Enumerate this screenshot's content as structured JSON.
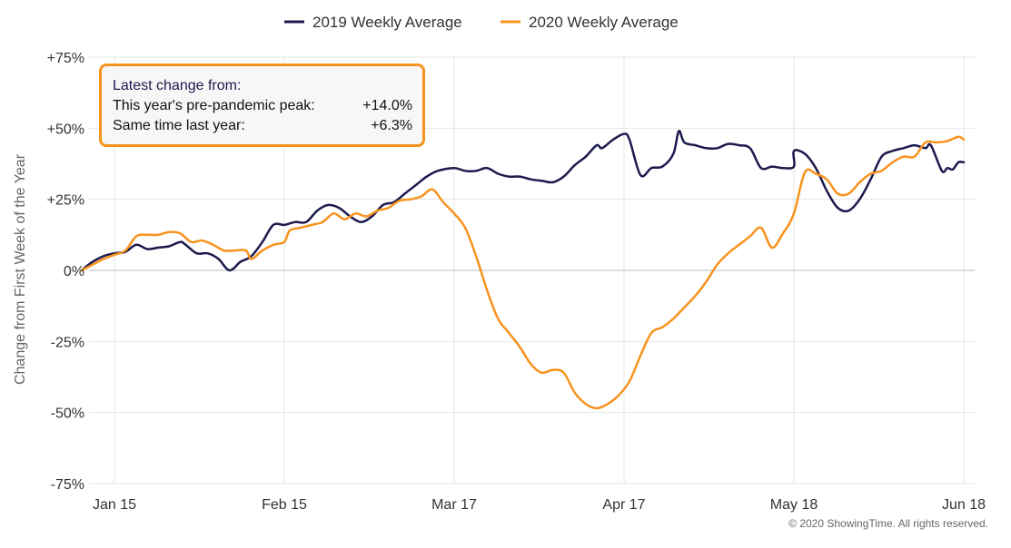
{
  "chart_data": {
    "type": "line",
    "title": "",
    "ylabel": "Change from First Week of the Year",
    "xlabel": "",
    "ylim": [
      -75,
      75
    ],
    "y_ticks": [
      75,
      50,
      25,
      0,
      -25,
      -50,
      -75
    ],
    "y_tick_labels": [
      "+75%",
      "+50%",
      "+25%",
      "0%",
      "-25%",
      "-50%",
      "-75%"
    ],
    "x_range": [
      "2020-01-08",
      "2020-06-19"
    ],
    "x_ticks": [
      {
        "date": "2020-01-15",
        "label": "Jan 15"
      },
      {
        "date": "2020-02-15",
        "label": "Feb 15"
      },
      {
        "date": "2020-03-17",
        "label": "Mar 17"
      },
      {
        "date": "2020-04-17",
        "label": "Apr 17"
      },
      {
        "date": "2020-05-18",
        "label": "May 18"
      },
      {
        "date": "2020-06-18",
        "label": "Jun 18"
      }
    ],
    "grid": "vertical lines at x ticks, horizontal lines at y ticks",
    "legend_position": "top-center",
    "series": [
      {
        "name": "2019 Weekly Average",
        "color": "#1b1a4d",
        "points": [
          [
            "2020-01-09",
            0
          ],
          [
            "2020-01-11",
            3
          ],
          [
            "2020-01-13",
            5
          ],
          [
            "2020-01-15",
            6
          ],
          [
            "2020-01-17",
            6.5
          ],
          [
            "2020-01-19",
            9
          ],
          [
            "2020-01-21",
            7.5
          ],
          [
            "2020-01-23",
            8
          ],
          [
            "2020-01-25",
            8.5
          ],
          [
            "2020-01-27",
            10
          ],
          [
            "2020-01-28",
            9
          ],
          [
            "2020-01-30",
            6
          ],
          [
            "2020-02-01",
            6
          ],
          [
            "2020-02-03",
            4
          ],
          [
            "2020-02-05",
            0
          ],
          [
            "2020-02-07",
            3
          ],
          [
            "2020-02-09",
            5
          ],
          [
            "2020-02-11",
            10
          ],
          [
            "2020-02-13",
            16
          ],
          [
            "2020-02-15",
            16
          ],
          [
            "2020-02-17",
            17
          ],
          [
            "2020-02-19",
            17
          ],
          [
            "2020-02-21",
            21
          ],
          [
            "2020-02-23",
            23
          ],
          [
            "2020-02-25",
            22
          ],
          [
            "2020-02-27",
            19
          ],
          [
            "2020-02-29",
            17
          ],
          [
            "2020-03-02",
            19
          ],
          [
            "2020-03-04",
            23
          ],
          [
            "2020-03-06",
            24
          ],
          [
            "2020-03-08",
            27
          ],
          [
            "2020-03-10",
            30
          ],
          [
            "2020-03-12",
            33
          ],
          [
            "2020-03-14",
            35
          ],
          [
            "2020-03-17",
            36
          ],
          [
            "2020-03-19",
            35
          ],
          [
            "2020-03-21",
            35
          ],
          [
            "2020-03-23",
            36
          ],
          [
            "2020-03-25",
            34
          ],
          [
            "2020-03-27",
            33
          ],
          [
            "2020-03-29",
            33
          ],
          [
            "2020-03-31",
            32
          ],
          [
            "2020-04-02",
            31.5
          ],
          [
            "2020-04-04",
            31
          ],
          [
            "2020-04-06",
            33
          ],
          [
            "2020-04-08",
            37
          ],
          [
            "2020-04-10",
            40
          ],
          [
            "2020-04-12",
            44
          ],
          [
            "2020-04-13",
            43
          ],
          [
            "2020-04-15",
            46
          ],
          [
            "2020-04-17",
            48
          ],
          [
            "2020-04-18",
            46
          ],
          [
            "2020-04-20",
            33.5
          ],
          [
            "2020-04-22",
            36
          ],
          [
            "2020-04-24",
            36.5
          ],
          [
            "2020-04-26",
            41
          ],
          [
            "2020-04-27",
            49
          ],
          [
            "2020-04-28",
            45
          ],
          [
            "2020-04-30",
            44
          ],
          [
            "2020-05-02",
            43
          ],
          [
            "2020-05-04",
            43
          ],
          [
            "2020-05-06",
            44.5
          ],
          [
            "2020-05-08",
            44
          ],
          [
            "2020-05-10",
            43
          ],
          [
            "2020-05-12",
            36
          ],
          [
            "2020-05-14",
            36.5
          ],
          [
            "2020-05-16",
            36
          ],
          [
            "2020-05-18",
            36.5
          ],
          [
            "2020-05-18",
            42
          ],
          [
            "2020-05-20",
            41
          ],
          [
            "2020-05-22",
            36
          ],
          [
            "2020-05-24",
            28
          ],
          [
            "2020-05-26",
            22
          ],
          [
            "2020-05-28",
            21
          ],
          [
            "2020-05-30",
            25
          ],
          [
            "2020-06-01",
            32
          ],
          [
            "2020-06-03",
            40
          ],
          [
            "2020-06-05",
            42
          ],
          [
            "2020-06-07",
            43
          ],
          [
            "2020-06-09",
            44
          ],
          [
            "2020-06-11",
            43
          ],
          [
            "2020-06-12",
            44
          ],
          [
            "2020-06-14",
            35
          ],
          [
            "2020-06-15",
            36
          ],
          [
            "2020-06-16",
            35.5
          ],
          [
            "2020-06-17",
            38
          ],
          [
            "2020-06-18",
            38
          ]
        ]
      },
      {
        "name": "2020 Weekly Average",
        "color": "#f7931e",
        "points": [
          [
            "2020-01-09",
            0
          ],
          [
            "2020-01-11",
            2
          ],
          [
            "2020-01-13",
            4
          ],
          [
            "2020-01-15",
            5.5
          ],
          [
            "2020-01-17",
            7
          ],
          [
            "2020-01-19",
            12
          ],
          [
            "2020-01-21",
            12.5
          ],
          [
            "2020-01-23",
            12.5
          ],
          [
            "2020-01-25",
            13.5
          ],
          [
            "2020-01-27",
            13
          ],
          [
            "2020-01-29",
            10
          ],
          [
            "2020-01-31",
            10.5
          ],
          [
            "2020-02-02",
            9
          ],
          [
            "2020-02-04",
            7
          ],
          [
            "2020-02-06",
            7
          ],
          [
            "2020-02-08",
            7
          ],
          [
            "2020-02-09",
            4
          ],
          [
            "2020-02-11",
            7
          ],
          [
            "2020-02-13",
            9
          ],
          [
            "2020-02-15",
            10
          ],
          [
            "2020-02-16",
            14
          ],
          [
            "2020-02-18",
            15
          ],
          [
            "2020-02-20",
            16
          ],
          [
            "2020-02-22",
            17
          ],
          [
            "2020-02-24",
            20
          ],
          [
            "2020-02-26",
            18
          ],
          [
            "2020-02-28",
            20
          ],
          [
            "2020-03-01",
            19
          ],
          [
            "2020-03-03",
            21
          ],
          [
            "2020-03-05",
            22
          ],
          [
            "2020-03-07",
            24.5
          ],
          [
            "2020-03-09",
            25
          ],
          [
            "2020-03-11",
            26
          ],
          [
            "2020-03-13",
            28.5
          ],
          [
            "2020-03-15",
            24
          ],
          [
            "2020-03-17",
            20
          ],
          [
            "2020-03-19",
            15
          ],
          [
            "2020-03-21",
            5
          ],
          [
            "2020-03-23",
            -7
          ],
          [
            "2020-03-25",
            -17
          ],
          [
            "2020-03-27",
            -22
          ],
          [
            "2020-03-29",
            -27
          ],
          [
            "2020-03-31",
            -33
          ],
          [
            "2020-04-02",
            -36
          ],
          [
            "2020-04-04",
            -35
          ],
          [
            "2020-04-06",
            -36
          ],
          [
            "2020-04-08",
            -43
          ],
          [
            "2020-04-10",
            -47
          ],
          [
            "2020-04-12",
            -48.5
          ],
          [
            "2020-04-14",
            -47
          ],
          [
            "2020-04-16",
            -44
          ],
          [
            "2020-04-18",
            -39
          ],
          [
            "2020-04-20",
            -30
          ],
          [
            "2020-04-22",
            -22
          ],
          [
            "2020-04-24",
            -20
          ],
          [
            "2020-04-26",
            -17
          ],
          [
            "2020-04-28",
            -13
          ],
          [
            "2020-04-30",
            -9
          ],
          [
            "2020-05-02",
            -4
          ],
          [
            "2020-05-04",
            2
          ],
          [
            "2020-05-06",
            6
          ],
          [
            "2020-05-08",
            9
          ],
          [
            "2020-05-10",
            12
          ],
          [
            "2020-05-12",
            15
          ],
          [
            "2020-05-14",
            8
          ],
          [
            "2020-05-16",
            13
          ],
          [
            "2020-05-18",
            20
          ],
          [
            "2020-05-20",
            34.5
          ],
          [
            "2020-05-22",
            34
          ],
          [
            "2020-05-24",
            32
          ],
          [
            "2020-05-26",
            27
          ],
          [
            "2020-05-28",
            27
          ],
          [
            "2020-05-30",
            31
          ],
          [
            "2020-06-01",
            34
          ],
          [
            "2020-06-03",
            35
          ],
          [
            "2020-06-05",
            38
          ],
          [
            "2020-06-07",
            40
          ],
          [
            "2020-06-09",
            40
          ],
          [
            "2020-06-11",
            45
          ],
          [
            "2020-06-13",
            45
          ],
          [
            "2020-06-15",
            45.5
          ],
          [
            "2020-06-17",
            47
          ],
          [
            "2020-06-18",
            46
          ]
        ]
      }
    ],
    "annotation": {
      "header": "Latest change from:",
      "rows": [
        {
          "label": "This year's pre-pandemic peak:",
          "value": "+14.0%"
        },
        {
          "label": "Same time last year:",
          "value": "+6.3%"
        }
      ],
      "border_color": "#f7931e"
    },
    "credit": "© 2020 ShowingTime. All rights reserved."
  },
  "colors": {
    "grid": "#e6e6e6",
    "zero_line": "#bbbbbb",
    "series_2019": "#1b1a4d",
    "series_2020": "#f7931e"
  }
}
